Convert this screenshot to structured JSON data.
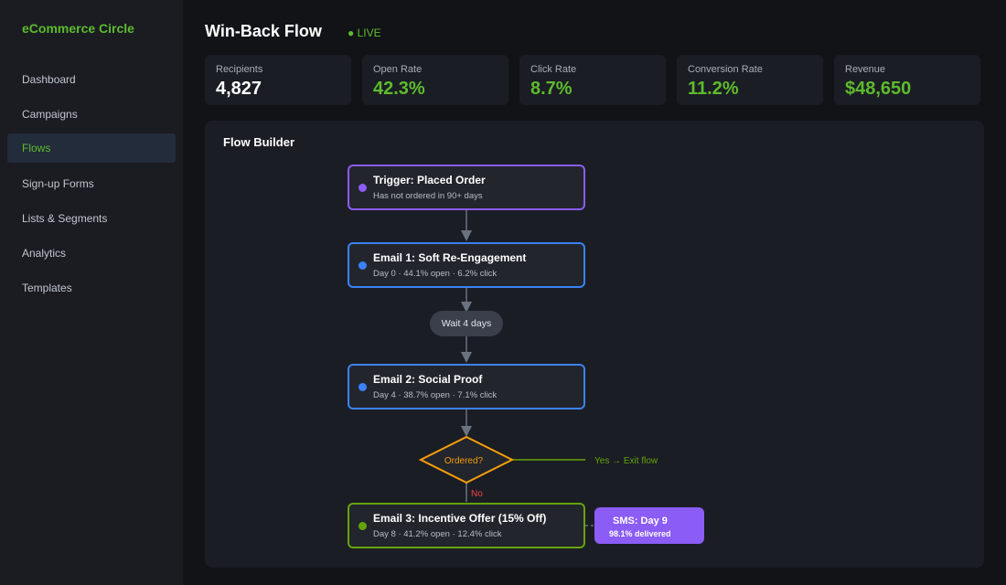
{
  "sidebar": {
    "brand": "eCommerce Circle",
    "nav": [
      "Dashboard",
      "Campaigns",
      "Flows",
      "Sign-up Forms",
      "Lists & Segments",
      "Analytics",
      "Templates"
    ]
  },
  "header": {
    "title": "Win-Back Flow",
    "status": "● LIVE"
  },
  "stats": [
    {
      "label": "Recipients",
      "value": "4,827"
    },
    {
      "label": "Open Rate",
      "value": "42.3%"
    },
    {
      "label": "Click Rate",
      "value": "8.7%"
    },
    {
      "label": "Conversion Rate",
      "value": "11.2%"
    },
    {
      "label": "Revenue",
      "value": "$48,650"
    }
  ],
  "flow": {
    "title": "Flow Builder",
    "trigger": {
      "title": "Trigger: Placed Order",
      "detail": "Has not ordered in 90+ days"
    },
    "email1": {
      "title": "Email 1: Soft Re-Engagement",
      "detail": "Day 0 · 44.1% open · 6.2% click"
    },
    "wait": "Wait 4 days",
    "email2": {
      "title": "Email 2: Social Proof",
      "detail": "Day 4 · 38.7% open · 7.1% click"
    },
    "decision": {
      "label": "Ordered?",
      "yes": "Yes → Exit flow",
      "no": "No"
    },
    "email3": {
      "title": "Email 3: Incentive Offer (15% Off)",
      "detail": "Day 8 · 41.2% open · 12.4% click"
    },
    "sms": {
      "title": "SMS: Day 9",
      "detail": "98.1% delivered"
    }
  }
}
